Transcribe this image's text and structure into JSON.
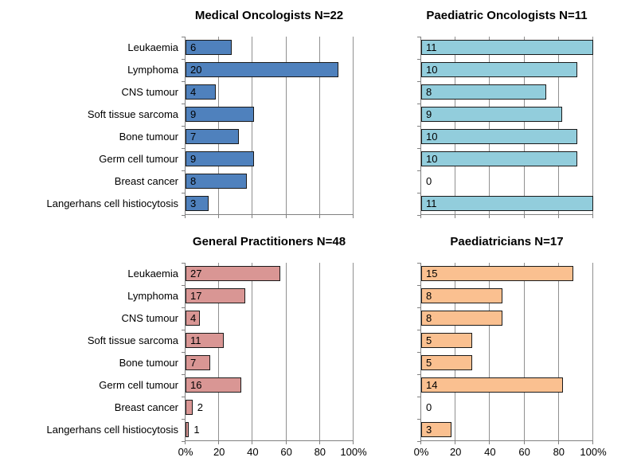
{
  "figure": {
    "background": "#ffffff",
    "grid_color": "#909090",
    "axis_color": "#808080",
    "bar_border_color": "#1a1a1a",
    "text_color": "#000000"
  },
  "chart_data": [
    {
      "type": "bar",
      "orientation": "horizontal",
      "title": "Medical Oncologists N=22",
      "n": 22,
      "categories": [
        "Leukaemia",
        "Lymphoma",
        "CNS tumour",
        "Soft tissue sarcoma",
        "Bone tumour",
        "Germ cell tumour",
        "Breast cancer",
        "Langerhans cell histiocytosis"
      ],
      "values": [
        6,
        20,
        4,
        9,
        7,
        9,
        8,
        3
      ],
      "bar_color": "#4F81BD",
      "xlim": [
        0,
        100
      ],
      "xtick_labels": [
        "0%",
        "20",
        "40",
        "60",
        "80",
        "100%"
      ],
      "grid": true,
      "show_category_labels": true,
      "show_x_labels": false
    },
    {
      "type": "bar",
      "orientation": "horizontal",
      "title": "Paediatric Oncologists N=11",
      "n": 11,
      "categories": [
        "Leukaemia",
        "Lymphoma",
        "CNS tumour",
        "Soft tissue sarcoma",
        "Bone tumour",
        "Germ cell tumour",
        "Breast cancer",
        "Langerhans cell histiocytosis"
      ],
      "values": [
        11,
        10,
        8,
        9,
        10,
        10,
        0,
        11
      ],
      "bar_color": "#92CDDC",
      "xlim": [
        0,
        100
      ],
      "xtick_labels": [
        "0%",
        "20",
        "40",
        "60",
        "80",
        "100%"
      ],
      "grid": true,
      "show_category_labels": false,
      "show_x_labels": false
    },
    {
      "type": "bar",
      "orientation": "horizontal",
      "title": "General Practitioners N=48",
      "n": 48,
      "categories": [
        "Leukaemia",
        "Lymphoma",
        "CNS tumour",
        "Soft tissue sarcoma",
        "Bone tumour",
        "Germ cell tumour",
        "Breast cancer",
        "Langerhans cell histiocytosis"
      ],
      "values": [
        27,
        17,
        4,
        11,
        7,
        16,
        2,
        1
      ],
      "bar_color": "#D99694",
      "xlim": [
        0,
        100
      ],
      "xtick_labels": [
        "0%",
        "20",
        "40",
        "60",
        "80",
        "100%"
      ],
      "grid": true,
      "show_category_labels": true,
      "show_x_labels": true
    },
    {
      "type": "bar",
      "orientation": "horizontal",
      "title": "Paediatricians N=17",
      "n": 17,
      "categories": [
        "Leukaemia",
        "Lymphoma",
        "CNS tumour",
        "Soft tissue sarcoma",
        "Bone tumour",
        "Germ cell tumour",
        "Breast cancer",
        "Langerhans cell histiocytosis"
      ],
      "values": [
        15,
        8,
        8,
        5,
        5,
        14,
        0,
        3
      ],
      "bar_color": "#FAC090",
      "xlim": [
        0,
        100
      ],
      "xtick_labels": [
        "0%",
        "20",
        "40",
        "60",
        "80",
        "100%"
      ],
      "grid": true,
      "show_category_labels": false,
      "show_x_labels": true
    }
  ]
}
